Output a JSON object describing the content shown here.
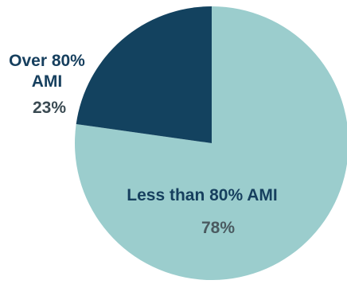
{
  "chart_data": {
    "type": "pie",
    "start_angle_deg": 0,
    "direction": "clockwise",
    "slices": [
      {
        "label_lines": [
          "Less than 80% AMI"
        ],
        "value": 78,
        "value_label": "78%",
        "color": "#9bcdcd",
        "label_position": "inside"
      },
      {
        "label_lines": [
          "Over 80%",
          "AMI"
        ],
        "value": 23,
        "value_label": "23%",
        "color": "#13425f",
        "label_position": "outside-left"
      }
    ]
  }
}
